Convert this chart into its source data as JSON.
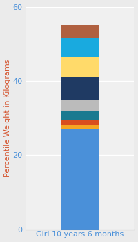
{
  "category": "Girl 10 years 6 months",
  "segments": [
    {
      "value": 27.0,
      "color": "#4A90D9"
    },
    {
      "value": 1.0,
      "color": "#F5A623"
    },
    {
      "value": 1.5,
      "color": "#D94F1E"
    },
    {
      "value": 2.5,
      "color": "#1A7A90"
    },
    {
      "value": 3.0,
      "color": "#BBBBBB"
    },
    {
      "value": 6.0,
      "color": "#1F3A63"
    },
    {
      "value": 5.5,
      "color": "#FFDA6A"
    },
    {
      "value": 5.0,
      "color": "#19AADF"
    },
    {
      "value": 3.5,
      "color": "#B06040"
    }
  ],
  "ylim": [
    0,
    60
  ],
  "yticks": [
    0,
    20,
    40,
    60
  ],
  "ylabel": "Percentile Weight in Kilograms",
  "xlabel": "Girl 10 years 6 months",
  "background_color": "#EBEBEB",
  "plot_bg_color": "#F0F0F0",
  "grid_color": "#FFFFFF",
  "ylabel_color": "#D4512A",
  "xlabel_color": "#4A90D9",
  "tick_color": "#4A90D9",
  "ylabel_fontsize": 8,
  "xlabel_fontsize": 8,
  "tick_fontsize": 8,
  "bar_width": 0.35,
  "figsize": [
    2.0,
    3.5
  ],
  "dpi": 100
}
